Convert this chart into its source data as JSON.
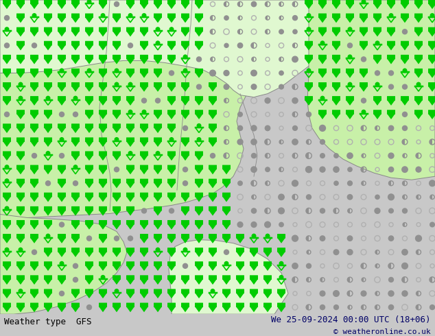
{
  "title_left": "Weather type  GFS",
  "title_right": "We 25-09-2024 00:00 UTC (18+06)",
  "copyright": "© weatheronline.co.uk",
  "bg_color": "#c8c8c8",
  "land_color_main": "#c8f0a8",
  "land_color_light": "#e0f8d0",
  "sea_color": "#c8c8c8",
  "border_color": "#888888",
  "fig_width": 6.34,
  "fig_height": 4.9,
  "dpi": 100,
  "title_font_size": 9,
  "copyright_font_size": 8,
  "title_color": "#000066",
  "title_left_color": "#000000",
  "green_symbol_color": "#00cc00",
  "gray_symbol_color": "#909090",
  "gray_open_color": "#b0b0b0"
}
